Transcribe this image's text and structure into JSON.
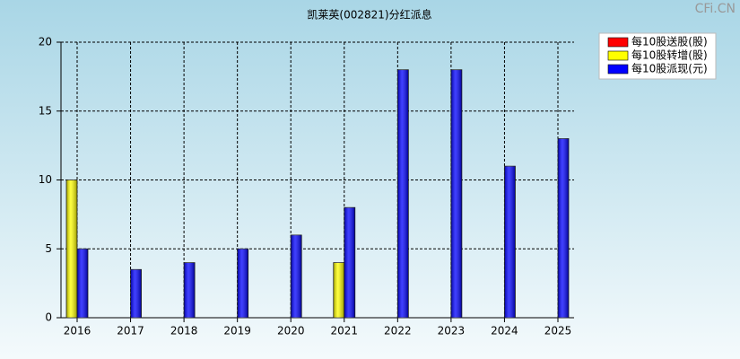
{
  "chart_data": {
    "type": "bar",
    "title": "凯莱英(002821)分红派息",
    "watermark": "CFi.CN",
    "categories": [
      "2016",
      "2017",
      "2018",
      "2019",
      "2020",
      "2021",
      "2022",
      "2023",
      "2024",
      "2025"
    ],
    "series": [
      {
        "name": "每10股送股(股)",
        "color": "#ff0000",
        "values": [
          null,
          null,
          null,
          null,
          null,
          null,
          null,
          null,
          null,
          null
        ]
      },
      {
        "name": "每10股转增(股)",
        "color": "#ffff00",
        "values": [
          10,
          null,
          null,
          null,
          null,
          4,
          null,
          null,
          null,
          null
        ]
      },
      {
        "name": "每10股派现(元)",
        "color": "#0000ff",
        "values": [
          5,
          3.5,
          4,
          5,
          6,
          8,
          18,
          18,
          11,
          13
        ]
      }
    ],
    "ylim": [
      0,
      20
    ],
    "yticks": [
      0,
      5,
      10,
      15,
      20
    ],
    "grid": true,
    "legend": "top-right"
  }
}
